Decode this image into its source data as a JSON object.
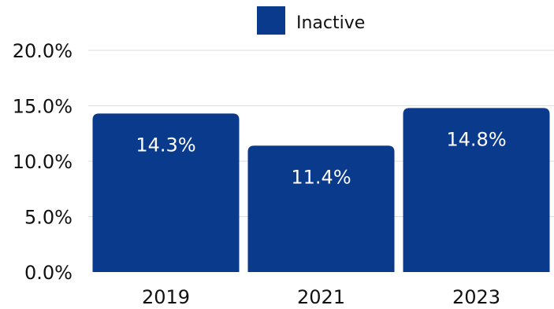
{
  "chart_data": {
    "type": "bar",
    "categories": [
      "2019",
      "2021",
      "2023"
    ],
    "series": [
      {
        "name": "Inactive",
        "values": [
          14.3,
          11.4,
          14.8
        ],
        "color": "#0a3a8c"
      }
    ],
    "data_labels": [
      "14.3%",
      "11.4%",
      "14.8%"
    ],
    "y_ticks": [
      0,
      5,
      10,
      15,
      20
    ],
    "y_tick_labels": [
      "0.0%",
      "5.0%",
      "10.0%",
      "15.0%",
      "20.0%"
    ],
    "ylim": [
      0,
      20
    ],
    "grid": true,
    "legend": {
      "position": "top-center",
      "labels": [
        "Inactive"
      ]
    },
    "title": "",
    "xlabel": "",
    "ylabel": ""
  }
}
